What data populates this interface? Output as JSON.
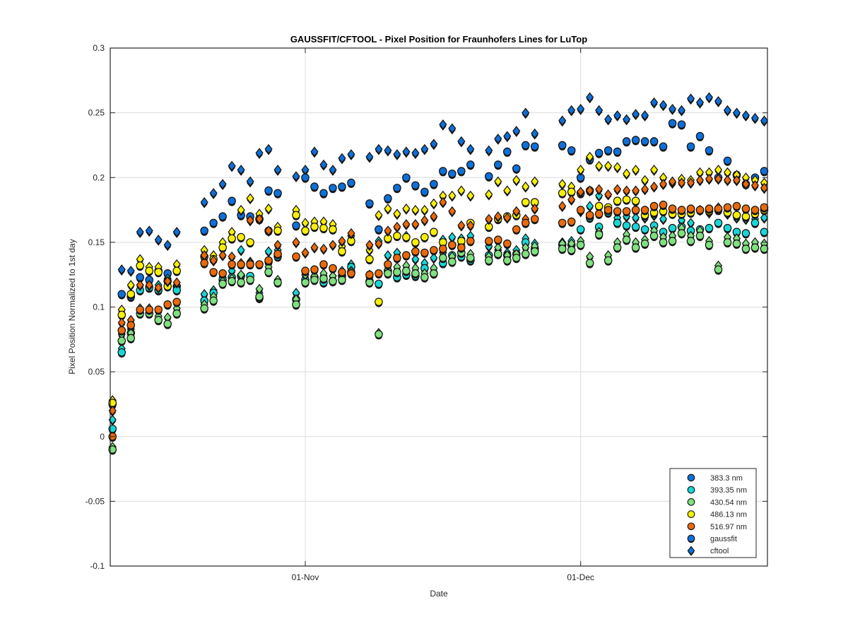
{
  "chart_data": {
    "type": "scatter",
    "title": "GAUSSFIT/CFTOOL - Pixel Position for Fraunhofers Lines for LuTop",
    "xlabel": "Date",
    "ylabel": "Pixel Position Normalized to 1st day",
    "xlim": [
      "2016-10-11",
      "2016-12-21"
    ],
    "ylim": [
      -0.1,
      0.3
    ],
    "grid": true,
    "legend_position": "bottom-right",
    "x_ticks": [
      {
        "date": "2016-11-01",
        "label": "01-Nov"
      },
      {
        "date": "2016-12-01",
        "label": "01-Dec"
      }
    ],
    "y_ticks": [
      {
        "value": -0.1,
        "label": "-0.1"
      },
      {
        "value": -0.05,
        "label": "-0.05"
      },
      {
        "value": 0,
        "label": "0"
      },
      {
        "value": 0.05,
        "label": "0.05"
      },
      {
        "value": 0.1,
        "label": "0.1"
      },
      {
        "value": 0.15,
        "label": "0.15"
      },
      {
        "value": 0.2,
        "label": "0.2"
      },
      {
        "value": 0.25,
        "label": "0.25"
      },
      {
        "value": 0.3,
        "label": "0.3"
      }
    ],
    "dates": [
      "2016-10-11",
      "2016-10-12",
      "2016-10-13",
      "2016-10-14",
      "2016-10-15",
      "2016-10-16",
      "2016-10-17",
      "2016-10-18",
      "2016-10-21",
      "2016-10-22",
      "2016-10-23",
      "2016-10-24",
      "2016-10-25",
      "2016-10-26",
      "2016-10-27",
      "2016-10-28",
      "2016-10-29",
      "2016-10-31",
      "2016-11-01",
      "2016-11-02",
      "2016-11-03",
      "2016-11-04",
      "2016-11-05",
      "2016-11-06",
      "2016-11-08",
      "2016-11-09",
      "2016-11-10",
      "2016-11-11",
      "2016-11-12",
      "2016-11-13",
      "2016-11-14",
      "2016-11-15",
      "2016-11-16",
      "2016-11-17",
      "2016-11-18",
      "2016-11-19",
      "2016-11-21",
      "2016-11-22",
      "2016-11-23",
      "2016-11-24",
      "2016-11-25",
      "2016-11-26",
      "2016-11-29",
      "2016-11-30",
      "2016-12-01",
      "2016-12-02",
      "2016-12-03",
      "2016-12-04",
      "2016-12-05",
      "2016-12-06",
      "2016-12-07",
      "2016-12-08",
      "2016-12-09",
      "2016-12-10",
      "2016-12-11",
      "2016-12-12",
      "2016-12-13",
      "2016-12-14",
      "2016-12-15",
      "2016-12-16",
      "2016-12-17",
      "2016-12-18",
      "2016-12-19",
      "2016-12-20",
      "2016-12-21"
    ],
    "series": [
      {
        "name": "383.3 nm",
        "color": "#0f6fd6",
        "gaussfit": [
          0.025,
          0.11,
          0.108,
          0.123,
          0.121,
          0.128,
          0.126,
          0.116,
          0.159,
          0.165,
          0.17,
          0.182,
          0.171,
          0.17,
          0.168,
          0.19,
          0.188,
          0.163,
          0.2,
          0.193,
          0.188,
          0.192,
          0.193,
          0.196,
          0.18,
          0.16,
          0.184,
          0.192,
          0.2,
          0.194,
          0.189,
          0.195,
          0.205,
          0.203,
          0.205,
          0.21,
          0.201,
          0.21,
          0.22,
          0.207,
          0.225,
          0.224,
          0.225,
          0.221,
          0.2,
          0.214,
          0.219,
          0.221,
          0.22,
          0.228,
          0.229,
          0.228,
          0.228,
          0.224,
          0.242,
          0.241,
          0.224,
          0.232,
          0.221,
          0.2,
          0.213,
          0.202,
          0.195,
          0.2,
          0.205
        ],
        "cftool": [
          0.028,
          0.129,
          0.128,
          0.158,
          0.159,
          0.152,
          0.148,
          0.158,
          0.181,
          0.188,
          0.195,
          0.209,
          0.206,
          0.197,
          0.219,
          0.222,
          0.206,
          0.201,
          0.206,
          0.22,
          0.21,
          0.206,
          0.215,
          0.218,
          0.216,
          0.222,
          0.221,
          0.218,
          0.22,
          0.219,
          0.222,
          0.226,
          0.241,
          0.238,
          0.228,
          0.222,
          0.221,
          0.23,
          0.232,
          0.236,
          0.25,
          0.234,
          0.244,
          0.252,
          0.253,
          0.262,
          0.252,
          0.245,
          0.248,
          0.245,
          0.249,
          0.248,
          0.258,
          0.256,
          0.253,
          0.252,
          0.261,
          0.258,
          0.262,
          0.259,
          0.252,
          0.25,
          0.248,
          0.246,
          0.244
        ]
      },
      {
        "name": "393.35 nm",
        "color": "#19d6d6",
        "gaussfit": [
          0.006,
          0.065,
          0.08,
          0.113,
          0.115,
          0.113,
          0.12,
          0.113,
          0.105,
          0.111,
          0.121,
          0.123,
          0.124,
          0.124,
          0.107,
          0.135,
          0.139,
          0.106,
          0.121,
          0.123,
          0.119,
          0.12,
          0.124,
          0.131,
          0.12,
          0.118,
          0.128,
          0.123,
          0.125,
          0.124,
          0.13,
          0.126,
          0.134,
          0.14,
          0.139,
          0.136,
          0.14,
          0.141,
          0.14,
          0.141,
          0.15,
          0.145,
          0.148,
          0.148,
          0.16,
          0.169,
          0.162,
          0.173,
          0.165,
          0.163,
          0.162,
          0.16,
          0.163,
          0.158,
          0.161,
          0.162,
          0.159,
          0.16,
          0.161,
          0.165,
          0.161,
          0.158,
          0.157,
          0.165,
          0.158
        ],
        "cftool": [
          0.013,
          0.068,
          0.083,
          0.117,
          0.116,
          0.117,
          0.122,
          0.117,
          0.11,
          0.113,
          0.123,
          0.128,
          0.144,
          0.135,
          0.111,
          0.143,
          0.144,
          0.111,
          0.125,
          0.124,
          0.124,
          0.124,
          0.128,
          0.133,
          0.125,
          0.151,
          0.14,
          0.142,
          0.155,
          0.137,
          0.134,
          0.138,
          0.152,
          0.154,
          0.153,
          0.155,
          0.147,
          0.144,
          0.142,
          0.144,
          0.153,
          0.149,
          0.15,
          0.151,
          0.174,
          0.178,
          0.186,
          0.174,
          0.169,
          0.17,
          0.169,
          0.169,
          0.171,
          0.168,
          0.173,
          0.167,
          0.165,
          0.175,
          0.173,
          0.177,
          0.172,
          0.169,
          0.168,
          0.168,
          0.169
        ]
      },
      {
        "name": "430.54 nm",
        "color": "#7fe07f",
        "gaussfit": [
          -0.01,
          0.074,
          0.076,
          0.095,
          0.095,
          0.09,
          0.087,
          0.095,
          0.099,
          0.105,
          0.118,
          0.12,
          0.119,
          0.121,
          0.108,
          0.127,
          0.119,
          0.102,
          0.119,
          0.121,
          0.122,
          0.12,
          0.121,
          0.127,
          0.119,
          0.079,
          0.126,
          0.127,
          0.128,
          0.126,
          0.123,
          0.126,
          0.138,
          0.135,
          0.142,
          0.138,
          0.136,
          0.141,
          0.136,
          0.138,
          0.141,
          0.143,
          0.145,
          0.144,
          0.148,
          0.134,
          0.156,
          0.136,
          0.146,
          0.152,
          0.146,
          0.149,
          0.155,
          0.15,
          0.151,
          0.157,
          0.151,
          0.155,
          0.148,
          0.129,
          0.15,
          0.149,
          0.145,
          0.146,
          0.145
        ],
        "cftool": [
          -0.008,
          0.079,
          0.08,
          0.099,
          0.099,
          0.093,
          0.092,
          0.099,
          0.102,
          0.108,
          0.12,
          0.122,
          0.125,
          0.134,
          0.114,
          0.131,
          0.121,
          0.106,
          0.125,
          0.124,
          0.126,
          0.124,
          0.124,
          0.128,
          0.123,
          0.08,
          0.129,
          0.131,
          0.132,
          0.13,
          0.126,
          0.13,
          0.142,
          0.139,
          0.148,
          0.141,
          0.139,
          0.146,
          0.14,
          0.141,
          0.146,
          0.147,
          0.149,
          0.149,
          0.151,
          0.139,
          0.158,
          0.14,
          0.15,
          0.156,
          0.15,
          0.152,
          0.159,
          0.154,
          0.155,
          0.161,
          0.155,
          0.159,
          0.151,
          0.132,
          0.154,
          0.153,
          0.149,
          0.15,
          0.149
        ]
      },
      {
        "name": "486.13 nm",
        "color": "#f7ef0a",
        "gaussfit": [
          0.026,
          0.094,
          0.11,
          0.132,
          0.128,
          0.127,
          0.116,
          0.128,
          0.139,
          0.137,
          0.146,
          0.153,
          0.154,
          0.15,
          0.168,
          0.159,
          0.159,
          0.171,
          0.159,
          0.162,
          0.161,
          0.16,
          0.143,
          0.151,
          0.137,
          0.104,
          0.153,
          0.155,
          0.154,
          0.15,
          0.154,
          0.158,
          0.15,
          0.148,
          0.151,
          0.165,
          0.162,
          0.168,
          0.17,
          0.171,
          0.181,
          0.181,
          0.188,
          0.189,
          0.188,
          0.19,
          0.178,
          0.177,
          0.182,
          0.183,
          0.182,
          0.171,
          0.173,
          0.174,
          0.172,
          0.172,
          0.173,
          0.175,
          0.174,
          0.175,
          0.173,
          0.171,
          0.17,
          0.172,
          0.175
        ],
        "cftool": [
          0.028,
          0.098,
          0.117,
          0.137,
          0.131,
          0.131,
          0.12,
          0.133,
          0.144,
          0.14,
          0.15,
          0.158,
          0.175,
          0.184,
          0.172,
          0.176,
          0.162,
          0.175,
          0.165,
          0.166,
          0.166,
          0.164,
          0.147,
          0.155,
          0.144,
          0.171,
          0.176,
          0.172,
          0.176,
          0.175,
          0.175,
          0.18,
          0.186,
          0.186,
          0.19,
          0.186,
          0.187,
          0.197,
          0.19,
          0.198,
          0.193,
          0.197,
          0.195,
          0.193,
          0.206,
          0.216,
          0.209,
          0.209,
          0.208,
          0.203,
          0.206,
          0.198,
          0.206,
          0.2,
          0.196,
          0.199,
          0.198,
          0.204,
          0.204,
          0.206,
          0.204,
          0.202,
          0.2,
          0.198,
          0.196
        ]
      },
      {
        "name": "516.97 nm",
        "color": "#e96a0d",
        "gaussfit": [
          0.0,
          0.082,
          0.086,
          0.098,
          0.098,
          0.098,
          0.102,
          0.104,
          0.134,
          0.127,
          0.126,
          0.133,
          0.133,
          0.133,
          0.133,
          0.136,
          0.141,
          0.139,
          0.128,
          0.129,
          0.133,
          0.13,
          0.127,
          0.126,
          0.125,
          0.126,
          0.133,
          0.138,
          0.14,
          0.143,
          0.142,
          0.144,
          0.145,
          0.148,
          0.146,
          0.151,
          0.151,
          0.152,
          0.149,
          0.16,
          0.165,
          0.168,
          0.165,
          0.166,
          0.175,
          0.171,
          0.172,
          0.175,
          0.174,
          0.174,
          0.175,
          0.175,
          0.178,
          0.179,
          0.176,
          0.175,
          0.176,
          0.175,
          0.176,
          0.176,
          0.177,
          0.178,
          0.176,
          0.175,
          0.177
        ],
        "cftool": [
          0.02,
          0.088,
          0.09,
          0.117,
          0.117,
          0.115,
          0.12,
          0.119,
          0.14,
          0.136,
          0.14,
          0.139,
          0.134,
          0.167,
          0.168,
          0.159,
          0.148,
          0.15,
          0.142,
          0.146,
          0.145,
          0.148,
          0.151,
          0.157,
          0.148,
          0.149,
          0.159,
          0.162,
          0.164,
          0.164,
          0.167,
          0.17,
          0.181,
          0.174,
          0.163,
          0.163,
          0.168,
          0.17,
          0.169,
          0.174,
          0.168,
          0.176,
          0.178,
          0.183,
          0.189,
          0.19,
          0.191,
          0.187,
          0.191,
          0.19,
          0.19,
          0.191,
          0.193,
          0.195,
          0.197,
          0.196,
          0.196,
          0.198,
          0.199,
          0.199,
          0.198,
          0.198,
          0.195,
          0.194,
          0.192
        ]
      }
    ],
    "legend": {
      "entries": [
        "383.3 nm",
        "393.35 nm",
        "430.54 nm",
        "486.13 nm",
        "516.97 nm",
        "gaussfit",
        "cftool"
      ]
    }
  }
}
